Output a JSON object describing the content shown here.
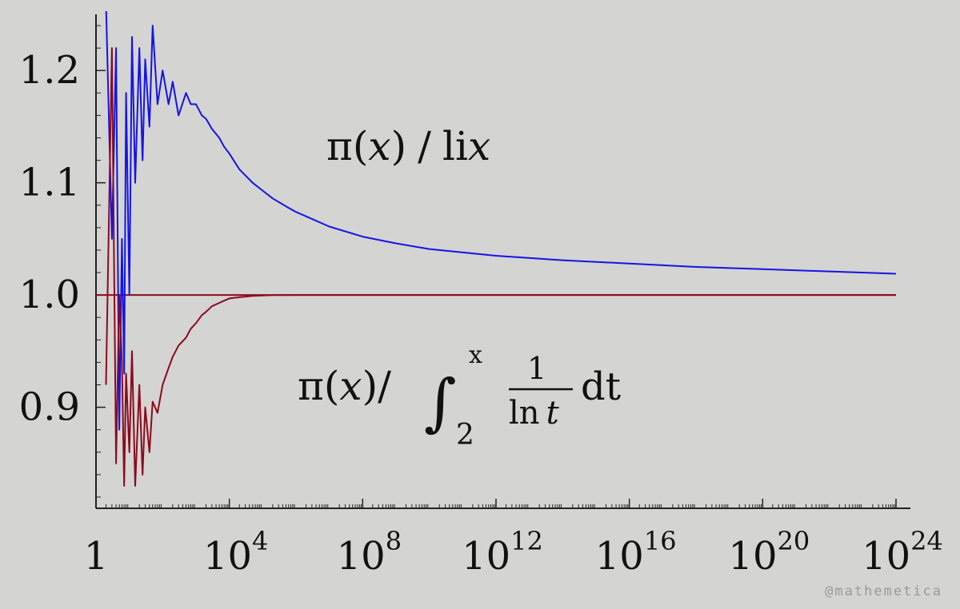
{
  "chart_data": {
    "type": "line",
    "title": "",
    "xlabel": "",
    "ylabel": "",
    "x_scale": "log10",
    "xlim": [
      1,
      1e+24
    ],
    "ylim": [
      0.81,
      1.25
    ],
    "x_ticks": [
      {
        "value": 1,
        "base": "1",
        "exp": ""
      },
      {
        "value": 10000.0,
        "base": "10",
        "exp": "4"
      },
      {
        "value": 100000000.0,
        "base": "10",
        "exp": "8"
      },
      {
        "value": 1000000000000.0,
        "base": "10",
        "exp": "12"
      },
      {
        "value": 1e+16,
        "base": "10",
        "exp": "16"
      },
      {
        "value": 1e+20,
        "base": "10",
        "exp": "20"
      },
      {
        "value": 1e+24,
        "base": "10",
        "exp": "24"
      }
    ],
    "y_ticks": [
      {
        "value": 0.9,
        "label": "0.9"
      },
      {
        "value": 1.0,
        "label": "1.0"
      },
      {
        "value": 1.1,
        "label": "1.1"
      },
      {
        "value": 1.2,
        "label": "1.2"
      }
    ],
    "grid": false,
    "series": [
      {
        "color": "#1414e6",
        "x": [
          2,
          3,
          4,
          5,
          6,
          7,
          8,
          10,
          12,
          15,
          20,
          25,
          30,
          40,
          50,
          70,
          100,
          150,
          200,
          300,
          500,
          700,
          1000,
          1500,
          2000,
          3000,
          5000,
          7000,
          10000,
          20000,
          50000,
          100000,
          200000,
          500000,
          1000000,
          10000000,
          100000000,
          1000000000,
          10000000000,
          1000000000000.0,
          100000000000000.0,
          1e+16,
          1e+18,
          1e+20,
          1e+22,
          1e+24
        ],
        "y": [
          1.26,
          1.05,
          1.22,
          0.88,
          1.05,
          0.93,
          1.18,
          1.0,
          1.23,
          1.1,
          1.22,
          1.12,
          1.21,
          1.15,
          1.24,
          1.17,
          1.2,
          1.17,
          1.19,
          1.16,
          1.18,
          1.17,
          1.17,
          1.16,
          1.157,
          1.148,
          1.14,
          1.132,
          1.126,
          1.112,
          1.1,
          1.093,
          1.086,
          1.079,
          1.074,
          1.061,
          1.052,
          1.046,
          1.041,
          1.035,
          1.031,
          1.028,
          1.025,
          1.023,
          1.021,
          1.019
        ]
      },
      {
        "color": "#8b0a1e",
        "x": [
          2,
          3,
          4,
          5,
          6,
          7,
          8,
          10,
          12,
          15,
          20,
          25,
          30,
          40,
          50,
          70,
          100,
          150,
          200,
          300,
          500,
          700,
          1000,
          1500,
          2000,
          3000,
          5000,
          7000,
          10000,
          20000,
          50000,
          100000,
          200000,
          1000000,
          10000000,
          1e+24
        ],
        "y": [
          0.92,
          1.22,
          0.85,
          1.0,
          0.94,
          0.83,
          0.93,
          0.86,
          0.95,
          0.83,
          0.92,
          0.84,
          0.9,
          0.86,
          0.905,
          0.895,
          0.92,
          0.935,
          0.945,
          0.955,
          0.962,
          0.97,
          0.975,
          0.982,
          0.985,
          0.99,
          0.993,
          0.995,
          0.997,
          0.998,
          0.9992,
          0.9996,
          0.9999,
          1.0,
          1.0,
          1.0
        ]
      }
    ],
    "reference_line": {
      "y": 1.0,
      "color": "#8b0a1e"
    }
  },
  "annotations": {
    "upper": {
      "pi": "π(",
      "x1": "x",
      "close": ")",
      "slash": "/",
      "li": "li",
      "x2": "x"
    },
    "lower": {
      "pi": "π(",
      "x1": "x",
      "close": ")/",
      "integral": "∫",
      "sub": "2",
      "sup": "x",
      "num": "1",
      "den_ln": "ln",
      "den_t": "t",
      "dt_d": "d",
      "dt_t": "t"
    }
  },
  "watermark": "@mathemetica"
}
